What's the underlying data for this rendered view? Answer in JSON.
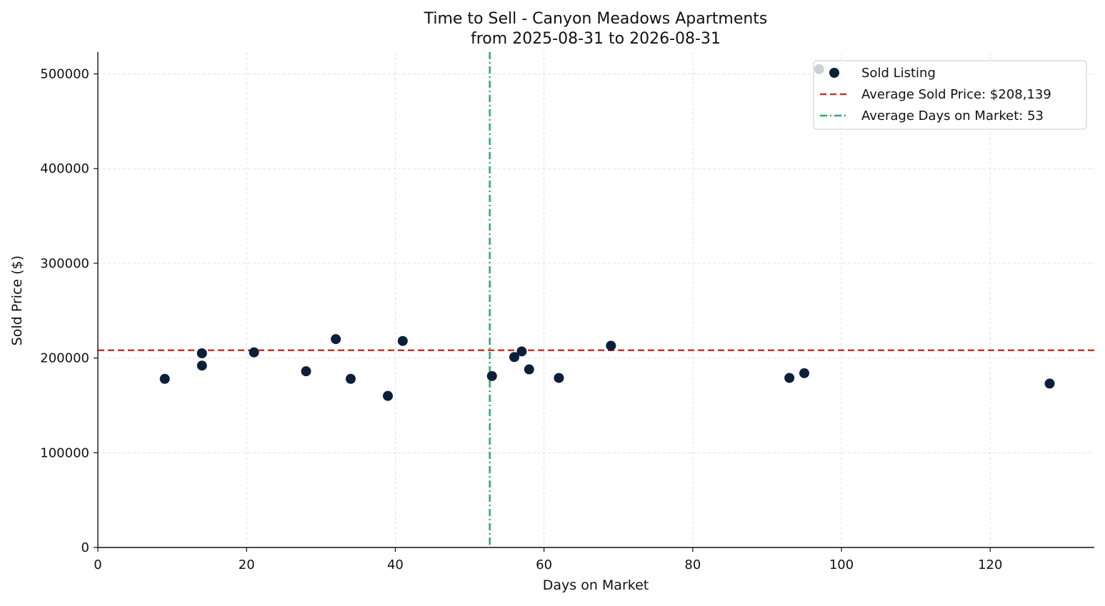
{
  "chart_data": {
    "type": "scatter",
    "title": "Time to Sell - Canyon Meadows Apartments",
    "subtitle": "from 2025-08-31 to 2026-08-31",
    "xlabel": "Days on Market",
    "ylabel": "Sold Price ($)",
    "xlim": [
      0,
      134
    ],
    "ylim": [
      0,
      523000
    ],
    "xticks": [
      0,
      20,
      40,
      60,
      80,
      100,
      120
    ],
    "yticks": [
      0,
      100000,
      200000,
      300000,
      400000,
      500000
    ],
    "grid": true,
    "legend_position": "top-right",
    "series": [
      {
        "name": "Sold Listing",
        "color": "#0b1f3a",
        "points": [
          {
            "x": 9,
            "y": 178000
          },
          {
            "x": 14,
            "y": 205000
          },
          {
            "x": 14,
            "y": 192000
          },
          {
            "x": 21,
            "y": 206000
          },
          {
            "x": 28,
            "y": 186000
          },
          {
            "x": 32,
            "y": 220000
          },
          {
            "x": 34,
            "y": 178000
          },
          {
            "x": 39,
            "y": 160000
          },
          {
            "x": 41,
            "y": 218000
          },
          {
            "x": 53,
            "y": 181000
          },
          {
            "x": 56,
            "y": 201000
          },
          {
            "x": 57,
            "y": 207000
          },
          {
            "x": 58,
            "y": 188000
          },
          {
            "x": 62,
            "y": 179000
          },
          {
            "x": 69,
            "y": 213000
          },
          {
            "x": 93,
            "y": 179000
          },
          {
            "x": 95,
            "y": 184000
          },
          {
            "x": 97,
            "y": 505000
          },
          {
            "x": 128,
            "y": 173000
          }
        ]
      }
    ],
    "reference_lines": [
      {
        "orientation": "horizontal",
        "value": 208139,
        "label": "Average Sold Price: $208,139",
        "color": "#c0392b",
        "style": "dashed"
      },
      {
        "orientation": "vertical",
        "value": 52.7,
        "label": "Average Days on Market: 53",
        "color": "#27ae60",
        "style": "dashdot"
      }
    ]
  }
}
